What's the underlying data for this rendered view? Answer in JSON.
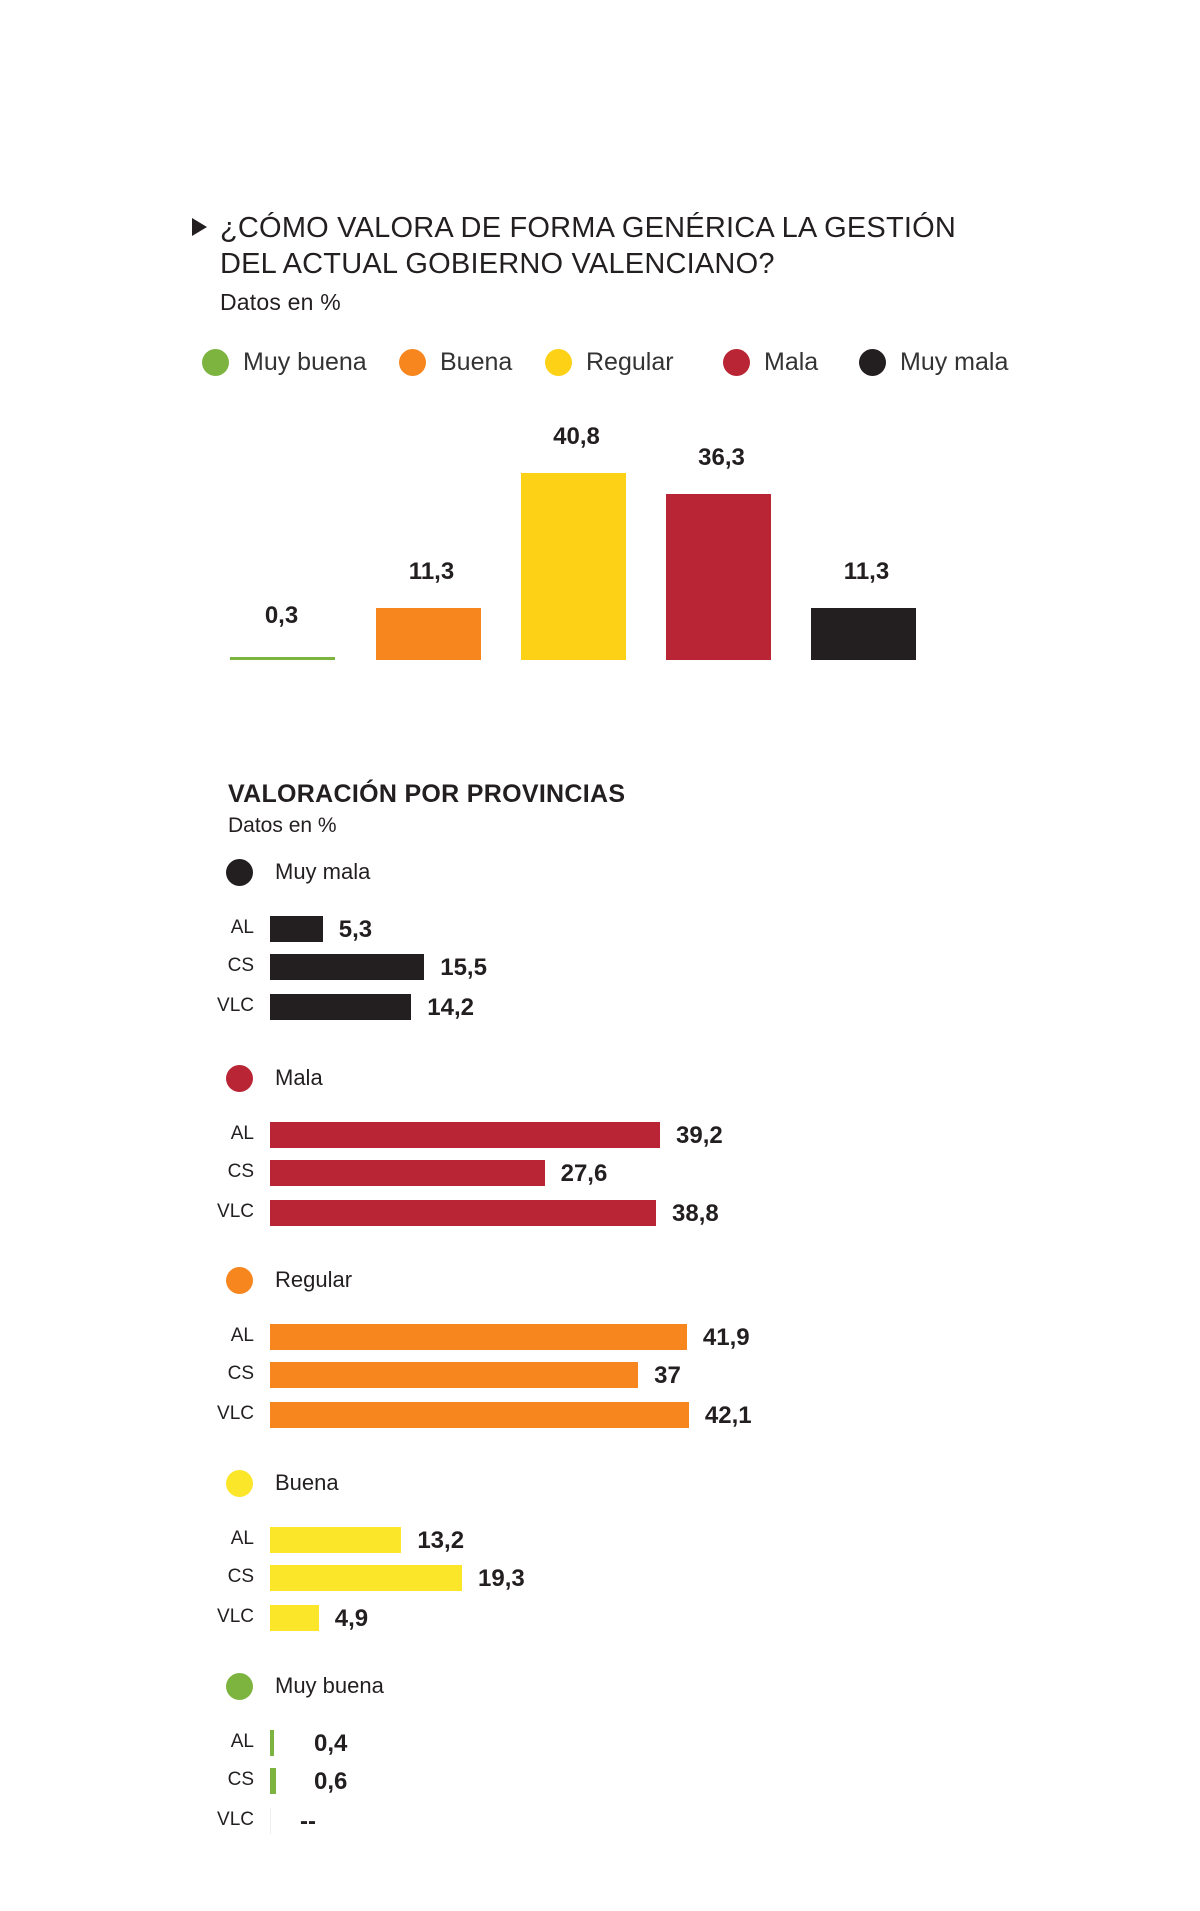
{
  "header": {
    "title_line1": "¿CÓMO VALORA DE FORMA GENÉRICA LA GESTIÓN",
    "title_line2": "DEL ACTUAL GOBIERNO VALENCIANO?",
    "subtitle": "Datos en %"
  },
  "chart_data": [
    {
      "type": "bar",
      "title": "¿CÓMO VALORA DE FORMA GENÉRICA LA GESTIÓN DEL ACTUAL GOBIERNO VALENCIANO?",
      "subtitle": "Datos en %",
      "categories": [
        "Muy buena",
        "Buena",
        "Regular",
        "Mala",
        "Muy mala"
      ],
      "values": [
        0.3,
        11.3,
        40.8,
        36.3,
        11.3
      ],
      "value_labels": [
        "0,3",
        "11,3",
        "40,8",
        "36,3",
        "11,3"
      ],
      "colors": [
        "#7db43f",
        "#f7861f",
        "#fcd116",
        "#b92534",
        "#231f20"
      ],
      "legend": [
        "Muy buena",
        "Buena",
        "Regular",
        "Mala",
        "Muy mala"
      ],
      "legend_placement": "top",
      "ylim": [
        0,
        45
      ],
      "grid": false
    },
    {
      "type": "bar",
      "orientation": "horizontal",
      "title": "VALORACIÓN POR PROVINCIAS",
      "subtitle": "Datos en %",
      "categories": [
        "AL",
        "CS",
        "VLC"
      ],
      "xlim": [
        0,
        45
      ],
      "groups": [
        {
          "name": "Muy mala",
          "color": "#231f20",
          "values": [
            5.3,
            15.5,
            14.2
          ],
          "value_labels": [
            "5,3",
            "15,5",
            "14,2"
          ]
        },
        {
          "name": "Mala",
          "color": "#b92534",
          "values": [
            39.2,
            27.6,
            38.8
          ],
          "value_labels": [
            "39,2",
            "27,6",
            "38,8"
          ]
        },
        {
          "name": "Regular",
          "color": "#f7861f",
          "values": [
            41.9,
            37,
            42.1
          ],
          "value_labels": [
            "41,9",
            "37",
            "42,1"
          ]
        },
        {
          "name": "Buena",
          "color": "#fbe62a",
          "values": [
            13.2,
            19.3,
            4.9
          ],
          "value_labels": [
            "13,2",
            "19,3",
            "4,9"
          ]
        },
        {
          "name": "Muy buena",
          "color": "#7db43f",
          "values": [
            0.4,
            0.6,
            null
          ],
          "value_labels": [
            "0,4",
            "0,6",
            "--"
          ]
        }
      ]
    }
  ]
}
